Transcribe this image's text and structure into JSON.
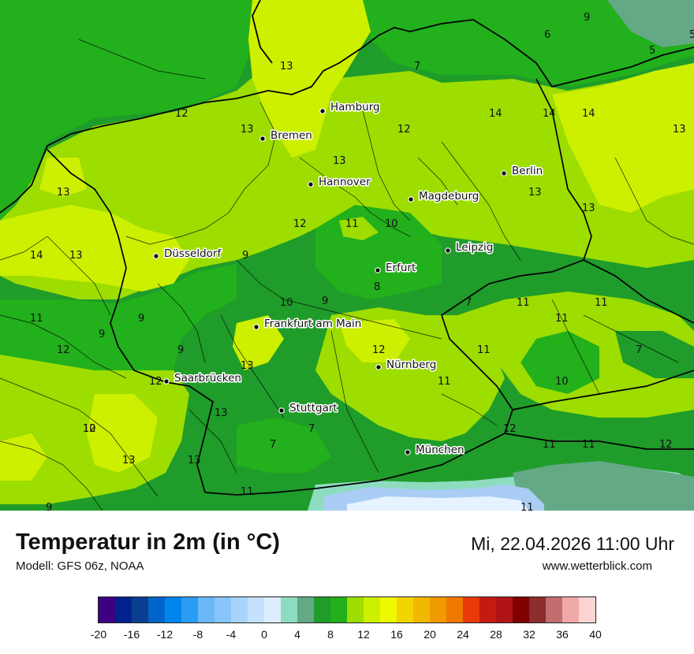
{
  "header": {
    "title": "Temperatur in 2m (in °C)",
    "model": "Modell: GFS 06z, NOAA",
    "datetime": "Mi, 22.04.2026 11:00 Uhr",
    "site": "www.wetterblick.com"
  },
  "colors": {
    "c6": "#64a985",
    "c7": "#1f9c2a",
    "c8": "#22b01c",
    "c10": "#5ec510",
    "c12": "#9ddd00",
    "c14": "#cdef00",
    "snow_white": "#e6f2ff",
    "snow_blue": "#a9cdf5",
    "alpine_green": "#8edcc0"
  },
  "cities": [
    {
      "name": "Hamburg"
    },
    {
      "name": "Bremen"
    },
    {
      "name": "Hannover"
    },
    {
      "name": "Berlin"
    },
    {
      "name": "Magdeburg"
    },
    {
      "name": "Düsseldorf"
    },
    {
      "name": "Leipzig"
    },
    {
      "name": "Erfurt"
    },
    {
      "name": "Frankfurt am Main"
    },
    {
      "name": "Nürnberg"
    },
    {
      "name": "Saarbrücken"
    },
    {
      "name": "Stuttgart"
    },
    {
      "name": "München"
    }
  ],
  "isotherm_labels": [
    "9",
    "6",
    "5",
    "5",
    "13",
    "7",
    "12",
    "13",
    "12",
    "14",
    "14",
    "14",
    "13",
    "13",
    "13",
    "12",
    "11",
    "10",
    "13",
    "14",
    "13",
    "9",
    "13",
    "8",
    "10",
    "9",
    "7",
    "11",
    "11",
    "11",
    "9",
    "9",
    "11",
    "12",
    "12",
    "12",
    "11",
    "11",
    "7",
    "10",
    "9",
    "12",
    "13",
    "13",
    "12",
    "7",
    "7",
    "10",
    "11",
    "11",
    "12",
    "11",
    "13",
    "13",
    "11",
    "9"
  ],
  "legend": {
    "ticks": [
      "-20",
      "-16",
      "-12",
      "-8",
      "-4",
      "0",
      "4",
      "8",
      "12",
      "16",
      "20",
      "24",
      "28",
      "32",
      "36",
      "40"
    ],
    "colors": [
      "#3e0081",
      "#00228c",
      "#0a3f8f",
      "#0064c8",
      "#0085ee",
      "#2b9cf6",
      "#6bb8f9",
      "#88c5fb",
      "#a8d4fc",
      "#c4e2fd",
      "#dceefe",
      "#8edcc0",
      "#64a985",
      "#1f9c2a",
      "#22b01c",
      "#9ddd00",
      "#cdef00",
      "#eef800",
      "#f2d400",
      "#f2b800",
      "#f19a00",
      "#f07800",
      "#e83a0a",
      "#c41a12",
      "#b01418",
      "#800000",
      "#8c2c2c",
      "#c36e6e",
      "#f0a8a8",
      "#fcd4d4"
    ]
  }
}
